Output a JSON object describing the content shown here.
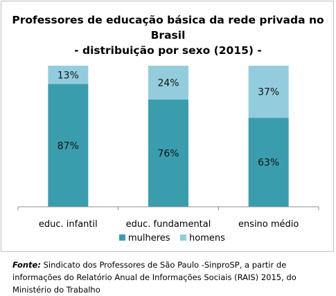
{
  "chart_data": {
    "type": "bar",
    "stacked": "percent",
    "title_line1": "Professores de educação básica da rede privada no Brasil",
    "title_line2": "- distribuição por sexo (2015) -",
    "categories": [
      "educ. infantil",
      "educ. fundamental",
      "ensino médio"
    ],
    "series": [
      {
        "name": "mulheres",
        "values": [
          87,
          76,
          63
        ],
        "labels": [
          "87%",
          "76%",
          "63%"
        ],
        "color": "#3a9dae"
      },
      {
        "name": "homens",
        "values": [
          13,
          24,
          37
        ],
        "labels": [
          "13%",
          "24%",
          "37%"
        ],
        "color": "#93cddd"
      }
    ],
    "ylim": [
      0,
      100
    ],
    "legend_position": "bottom",
    "grid": false
  },
  "source": {
    "label": "Fonte:",
    "text": "Sindicato dos Professores de São Paulo -SinproSP, a partir de informações do Relatório Anual de Informações Sociais (RAIS) 2015, do Ministério do Trabalho"
  }
}
